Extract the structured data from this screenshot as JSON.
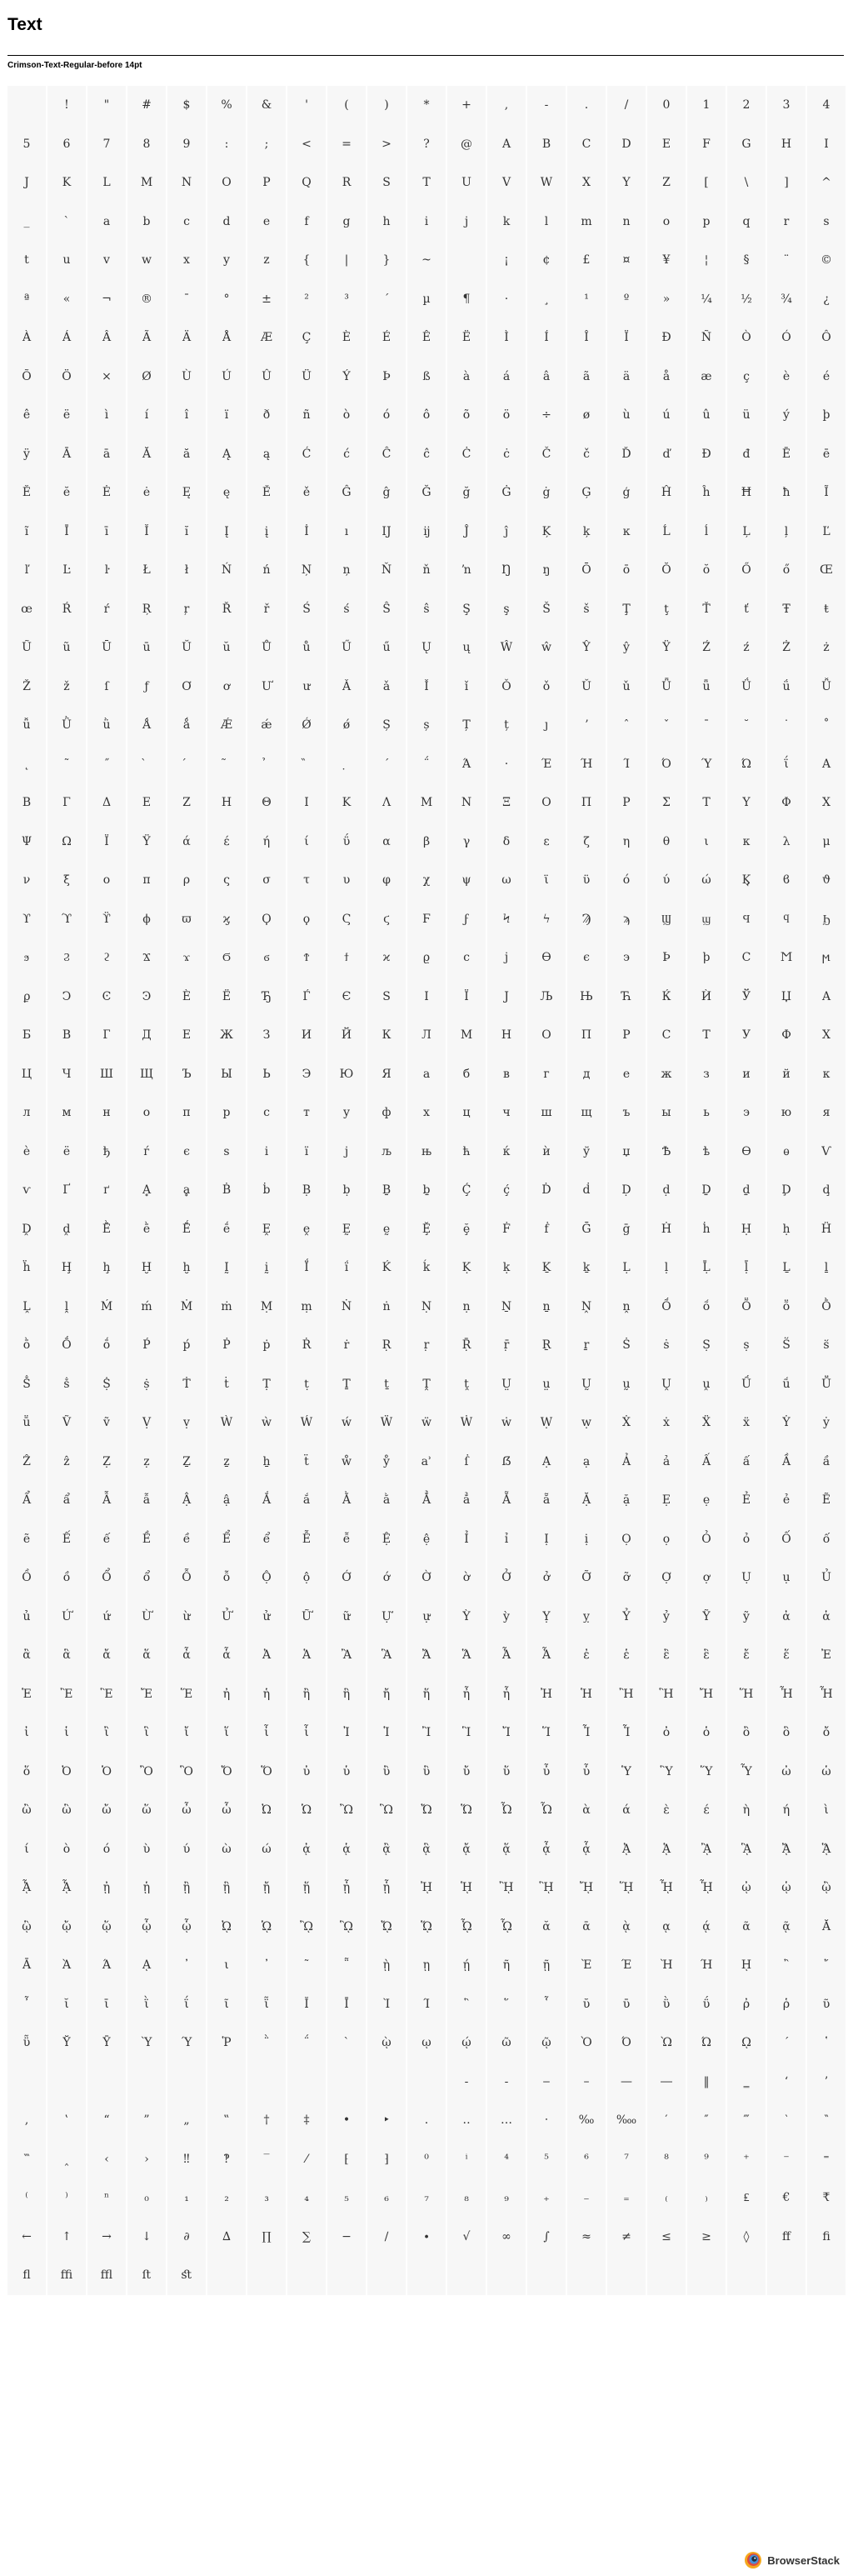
{
  "page": {
    "title": "Text",
    "font_label": "Crimson-Text-Regular-before 14pt"
  },
  "branding": {
    "name": "BrowserStack"
  },
  "colors": {
    "cell_background": "#f7f7f7",
    "glyph": "#333333",
    "text": "#000000"
  },
  "glyph_rows": [
    [
      "",
      "!",
      "\"",
      "#",
      "$",
      "%",
      "&",
      "'",
      "(",
      ")",
      "*",
      "+",
      ",",
      "-",
      ".",
      "/",
      "0",
      "1",
      "2",
      "3",
      "4"
    ],
    [
      "5",
      "6",
      "7",
      "8",
      "9",
      ":",
      ";",
      "<",
      "=",
      ">",
      "?",
      "@",
      "A",
      "B",
      "C",
      "D",
      "E",
      "F",
      "G",
      "H",
      "I"
    ],
    [
      "J",
      "K",
      "L",
      "M",
      "N",
      "O",
      "P",
      "Q",
      "R",
      "S",
      "T",
      "U",
      "V",
      "W",
      "X",
      "Y",
      "Z",
      "[",
      "\\",
      "]",
      "^"
    ],
    [
      "_",
      "`",
      "a",
      "b",
      "c",
      "d",
      "e",
      "f",
      "g",
      "h",
      "i",
      "j",
      "k",
      "l",
      "m",
      "n",
      "o",
      "p",
      "q",
      "r",
      "s"
    ],
    [
      "t",
      "u",
      "v",
      "w",
      "x",
      "y",
      "z",
      "{",
      "|",
      "}",
      "~",
      "",
      "¡",
      "¢",
      "£",
      "¤",
      "¥",
      "¦",
      "§",
      "¨",
      "©"
    ],
    [
      "ª",
      "«",
      "¬",
      "®",
      "¯",
      "°",
      "±",
      "²",
      "³",
      "´",
      "µ",
      "¶",
      "·",
      "¸",
      "¹",
      "º",
      "»",
      "¼",
      "½",
      "¾",
      "¿"
    ],
    [
      "À",
      "Á",
      "Â",
      "Ã",
      "Ä",
      "Å",
      "Æ",
      "Ç",
      "È",
      "É",
      "Ê",
      "Ë",
      "Ì",
      "Í",
      "Î",
      "Ï",
      "Ð",
      "Ñ",
      "Ò",
      "Ó",
      "Ô"
    ],
    [
      "Õ",
      "Ö",
      "×",
      "Ø",
      "Ù",
      "Ú",
      "Û",
      "Ü",
      "Ý",
      "Þ",
      "ß",
      "à",
      "á",
      "â",
      "ã",
      "ä",
      "å",
      "æ",
      "ç",
      "è",
      "é"
    ],
    [
      "ê",
      "ë",
      "ì",
      "í",
      "î",
      "ï",
      "ð",
      "ñ",
      "ò",
      "ó",
      "ô",
      "õ",
      "ö",
      "÷",
      "ø",
      "ù",
      "ú",
      "û",
      "ü",
      "ý",
      "þ"
    ],
    [
      "ÿ",
      "Ā",
      "ā",
      "Ă",
      "ă",
      "Ą",
      "ą",
      "Ć",
      "ć",
      "Ĉ",
      "ĉ",
      "Ċ",
      "ċ",
      "Č",
      "č",
      "Ď",
      "ď",
      "Đ",
      "đ",
      "Ē",
      "ē"
    ],
    [
      "Ĕ",
      "ĕ",
      "Ė",
      "ė",
      "Ę",
      "ę",
      "Ě",
      "ě",
      "Ĝ",
      "ĝ",
      "Ğ",
      "ğ",
      "Ġ",
      "ġ",
      "Ģ",
      "ģ",
      "Ĥ",
      "ĥ",
      "Ħ",
      "ħ",
      "Ĩ"
    ],
    [
      "ĩ",
      "Ī",
      "ī",
      "Ĭ",
      "ĭ",
      "Į",
      "į",
      "İ",
      "ı",
      "Ĳ",
      "ĳ",
      "Ĵ",
      "ĵ",
      "Ķ",
      "ķ",
      "ĸ",
      "Ĺ",
      "ĺ",
      "Ļ",
      "ļ",
      "Ľ"
    ],
    [
      "ľ",
      "Ŀ",
      "ŀ",
      "Ł",
      "ł",
      "Ń",
      "ń",
      "Ņ",
      "ņ",
      "Ň",
      "ň",
      "ŉ",
      "Ŋ",
      "ŋ",
      "Ō",
      "ō",
      "Ŏ",
      "ŏ",
      "Ő",
      "ő",
      "Œ"
    ],
    [
      "œ",
      "Ŕ",
      "ŕ",
      "Ŗ",
      "ŗ",
      "Ř",
      "ř",
      "Ś",
      "ś",
      "Ŝ",
      "ŝ",
      "Ş",
      "ş",
      "Š",
      "š",
      "Ţ",
      "ţ",
      "Ť",
      "ť",
      "Ŧ",
      "ŧ"
    ],
    [
      "Ũ",
      "ũ",
      "Ū",
      "ū",
      "Ŭ",
      "ŭ",
      "Ů",
      "ů",
      "Ű",
      "ű",
      "Ų",
      "ų",
      "Ŵ",
      "ŵ",
      "Ŷ",
      "ŷ",
      "Ÿ",
      "Ź",
      "ź",
      "Ż",
      "ż"
    ],
    [
      "Ž",
      "ž",
      "ſ",
      "ƒ",
      "Ơ",
      "ơ",
      "Ư",
      "ư",
      "Ǎ",
      "ǎ",
      "Ǐ",
      "ǐ",
      "Ǒ",
      "ǒ",
      "Ǔ",
      "ǔ",
      "Ǖ",
      "ǖ",
      "Ǘ",
      "ǘ",
      "Ǚ"
    ],
    [
      "ǚ",
      "Ǜ",
      "ǜ",
      "Ǻ",
      "ǻ",
      "Ǽ",
      "ǽ",
      "Ǿ",
      "ǿ",
      "Ș",
      "ș",
      "Ț",
      "ț",
      "ȷ",
      "ʼ",
      "ˆ",
      "ˇ",
      "ˉ",
      "˘",
      "˙",
      "˚"
    ],
    [
      "˛",
      "˜",
      "˝",
      "̀",
      "́",
      "̃",
      "̉",
      "̏",
      "̣",
      "΄",
      "΅",
      "Ά",
      "·",
      "Έ",
      "Ή",
      "Ί",
      "Ό",
      "Ύ",
      "Ώ",
      "ΐ",
      "Α"
    ],
    [
      "Β",
      "Γ",
      "Δ",
      "Ε",
      "Ζ",
      "Η",
      "Θ",
      "Ι",
      "Κ",
      "Λ",
      "Μ",
      "Ν",
      "Ξ",
      "Ο",
      "Π",
      "Ρ",
      "Σ",
      "Τ",
      "Υ",
      "Φ",
      "Χ"
    ],
    [
      "Ψ",
      "Ω",
      "Ϊ",
      "Ϋ",
      "ά",
      "έ",
      "ή",
      "ί",
      "ΰ",
      "α",
      "β",
      "γ",
      "δ",
      "ε",
      "ζ",
      "η",
      "θ",
      "ι",
      "κ",
      "λ",
      "μ"
    ],
    [
      "ν",
      "ξ",
      "ο",
      "π",
      "ρ",
      "ς",
      "σ",
      "τ",
      "υ",
      "φ",
      "χ",
      "ψ",
      "ω",
      "ϊ",
      "ϋ",
      "ό",
      "ύ",
      "ώ",
      "Ϗ",
      "ϐ",
      "ϑ"
    ],
    [
      "ϒ",
      "ϓ",
      "ϔ",
      "ϕ",
      "ϖ",
      "ϗ",
      "Ϙ",
      "ϙ",
      "Ϛ",
      "ϛ",
      "Ϝ",
      "ϝ",
      "Ϟ",
      "ϟ",
      "Ϡ",
      "ϡ",
      "Ϣ",
      "ϣ",
      "Ϥ",
      "ϥ",
      "Ϧ"
    ],
    [
      "ϧ",
      "Ϩ",
      "ϩ",
      "Ϫ",
      "ϫ",
      "Ϭ",
      "ϭ",
      "Ϯ",
      "ϯ",
      "ϰ",
      "ϱ",
      "ϲ",
      "ϳ",
      "ϴ",
      "ϵ",
      "϶",
      "Ϸ",
      "ϸ",
      "Ϲ",
      "Ϻ",
      "ϻ"
    ],
    [
      "ϼ",
      "Ͻ",
      "Ͼ",
      "Ͽ",
      "Ѐ",
      "Ё",
      "Ђ",
      "Ѓ",
      "Є",
      "Ѕ",
      "І",
      "Ї",
      "Ј",
      "Љ",
      "Њ",
      "Ћ",
      "Ќ",
      "Ѝ",
      "Ў",
      "Џ",
      "А"
    ],
    [
      "Б",
      "В",
      "Г",
      "Д",
      "Е",
      "Ж",
      "З",
      "И",
      "Й",
      "К",
      "Л",
      "М",
      "Н",
      "О",
      "П",
      "Р",
      "С",
      "Т",
      "У",
      "Ф",
      "Х"
    ],
    [
      "Ц",
      "Ч",
      "Ш",
      "Щ",
      "Ъ",
      "Ы",
      "Ь",
      "Э",
      "Ю",
      "Я",
      "а",
      "б",
      "в",
      "г",
      "д",
      "е",
      "ж",
      "з",
      "и",
      "й",
      "к"
    ],
    [
      "л",
      "м",
      "н",
      "о",
      "п",
      "р",
      "с",
      "т",
      "у",
      "ф",
      "х",
      "ц",
      "ч",
      "ш",
      "щ",
      "ъ",
      "ы",
      "ь",
      "э",
      "ю",
      "я"
    ],
    [
      "ѐ",
      "ё",
      "ђ",
      "ѓ",
      "є",
      "ѕ",
      "і",
      "ї",
      "ј",
      "љ",
      "њ",
      "ћ",
      "ќ",
      "ѝ",
      "ў",
      "џ",
      "Ѣ",
      "ѣ",
      "Ѳ",
      "ѳ",
      "Ѵ"
    ],
    [
      "ѵ",
      "Ґ",
      "ґ",
      "Ḁ",
      "ḁ",
      "Ḃ",
      "ḃ",
      "Ḅ",
      "ḅ",
      "Ḇ",
      "ḇ",
      "Ḉ",
      "ḉ",
      "Ḋ",
      "ḋ",
      "Ḍ",
      "ḍ",
      "Ḏ",
      "ḏ",
      "Ḑ",
      "ḑ"
    ],
    [
      "Ḓ",
      "ḓ",
      "Ḕ",
      "ḕ",
      "Ḗ",
      "ḗ",
      "Ḙ",
      "ḙ",
      "Ḛ",
      "ḛ",
      "Ḝ",
      "ḝ",
      "Ḟ",
      "ḟ",
      "Ḡ",
      "ḡ",
      "Ḣ",
      "ḣ",
      "Ḥ",
      "ḥ",
      "Ḧ"
    ],
    [
      "ḧ",
      "Ḩ",
      "ḩ",
      "Ḫ",
      "ḫ",
      "Ḭ",
      "ḭ",
      "Ḯ",
      "ḯ",
      "Ḱ",
      "ḱ",
      "Ḳ",
      "ḳ",
      "Ḵ",
      "ḵ",
      "Ḷ",
      "ḷ",
      "Ḹ",
      "ḹ",
      "Ḻ",
      "ḻ"
    ],
    [
      "Ḽ",
      "ḽ",
      "Ḿ",
      "ḿ",
      "Ṁ",
      "ṁ",
      "Ṃ",
      "ṃ",
      "Ṅ",
      "ṅ",
      "Ṇ",
      "ṇ",
      "Ṉ",
      "ṉ",
      "Ṋ",
      "ṋ",
      "Ṍ",
      "ṍ",
      "Ṏ",
      "ṏ",
      "Ṑ"
    ],
    [
      "ṑ",
      "Ṓ",
      "ṓ",
      "Ṕ",
      "ṕ",
      "Ṗ",
      "ṗ",
      "Ṙ",
      "ṙ",
      "Ṛ",
      "ṛ",
      "Ṝ",
      "ṝ",
      "Ṟ",
      "ṟ",
      "Ṡ",
      "ṡ",
      "Ṣ",
      "ṣ",
      "Ṥ",
      "ṥ"
    ],
    [
      "Ṧ",
      "ṧ",
      "Ṩ",
      "ṩ",
      "Ṫ",
      "ṫ",
      "Ṭ",
      "ṭ",
      "Ṯ",
      "ṯ",
      "Ṱ",
      "ṱ",
      "Ṳ",
      "ṳ",
      "Ṵ",
      "ṵ",
      "Ṷ",
      "ṷ",
      "Ṹ",
      "ṹ",
      "Ṻ"
    ],
    [
      "ṻ",
      "Ṽ",
      "ṽ",
      "Ṿ",
      "ṿ",
      "Ẁ",
      "ẁ",
      "Ẃ",
      "ẃ",
      "Ẅ",
      "ẅ",
      "Ẇ",
      "ẇ",
      "Ẉ",
      "ẉ",
      "Ẋ",
      "ẋ",
      "Ẍ",
      "ẍ",
      "Ẏ",
      "ẏ"
    ],
    [
      "Ẑ",
      "ẑ",
      "Ẓ",
      "ẓ",
      "Ẕ",
      "ẕ",
      "ẖ",
      "ẗ",
      "ẘ",
      "ẙ",
      "ẚ",
      "ẛ",
      "ẞ",
      "Ạ",
      "ạ",
      "Ả",
      "ả",
      "Ấ",
      "ấ",
      "Ầ",
      "ầ"
    ],
    [
      "Ẩ",
      "ẩ",
      "Ẫ",
      "ẫ",
      "Ậ",
      "ậ",
      "Ắ",
      "ắ",
      "Ằ",
      "ằ",
      "Ẳ",
      "ẳ",
      "Ẵ",
      "ẵ",
      "Ặ",
      "ặ",
      "Ẹ",
      "ẹ",
      "Ẻ",
      "ẻ",
      "Ẽ"
    ],
    [
      "ẽ",
      "Ế",
      "ế",
      "Ề",
      "ề",
      "Ể",
      "ể",
      "Ễ",
      "ễ",
      "Ệ",
      "ệ",
      "Ỉ",
      "ỉ",
      "Ị",
      "ị",
      "Ọ",
      "ọ",
      "Ỏ",
      "ỏ",
      "Ố",
      "ố"
    ],
    [
      "Ồ",
      "ồ",
      "Ổ",
      "ổ",
      "Ỗ",
      "ỗ",
      "Ộ",
      "ộ",
      "Ớ",
      "ớ",
      "Ờ",
      "ờ",
      "Ở",
      "ở",
      "Ỡ",
      "ỡ",
      "Ợ",
      "ợ",
      "Ụ",
      "ụ",
      "Ủ"
    ],
    [
      "ủ",
      "Ứ",
      "ứ",
      "Ừ",
      "ừ",
      "Ử",
      "ử",
      "Ữ",
      "ữ",
      "Ự",
      "ự",
      "Ỳ",
      "ỳ",
      "Ỵ",
      "ỵ",
      "Ỷ",
      "ỷ",
      "Ỹ",
      "ỹ",
      "ἀ",
      "ἁ"
    ],
    [
      "ἂ",
      "ἃ",
      "ἄ",
      "ἅ",
      "ἆ",
      "ἇ",
      "Ἀ",
      "Ἁ",
      "Ἂ",
      "Ἃ",
      "Ἄ",
      "Ἅ",
      "Ἆ",
      "Ἇ",
      "ἐ",
      "ἑ",
      "ἒ",
      "ἓ",
      "ἔ",
      "ἕ",
      "Ἐ"
    ],
    [
      "Ἑ",
      "Ἒ",
      "Ἓ",
      "Ἔ",
      "Ἕ",
      "ἠ",
      "ἡ",
      "ἢ",
      "ἣ",
      "ἤ",
      "ἥ",
      "ἦ",
      "ἧ",
      "Ἠ",
      "Ἡ",
      "Ἢ",
      "Ἣ",
      "Ἤ",
      "Ἥ",
      "Ἦ",
      "Ἧ"
    ],
    [
      "ἰ",
      "ἱ",
      "ἲ",
      "ἳ",
      "ἴ",
      "ἵ",
      "ἶ",
      "ἷ",
      "Ἰ",
      "Ἱ",
      "Ἲ",
      "Ἳ",
      "Ἴ",
      "Ἵ",
      "Ἶ",
      "Ἷ",
      "ὀ",
      "ὁ",
      "ὂ",
      "ὃ",
      "ὄ"
    ],
    [
      "ὅ",
      "Ὀ",
      "Ὁ",
      "Ὂ",
      "Ὃ",
      "Ὄ",
      "Ὅ",
      "ὐ",
      "ὑ",
      "ὒ",
      "ὓ",
      "ὔ",
      "ὕ",
      "ὖ",
      "ὗ",
      "Ὑ",
      "Ὓ",
      "Ὕ",
      "Ὗ",
      "ὠ",
      "ὡ"
    ],
    [
      "ὢ",
      "ὣ",
      "ὤ",
      "ὥ",
      "ὦ",
      "ὧ",
      "Ὠ",
      "Ὡ",
      "Ὢ",
      "Ὣ",
      "Ὤ",
      "Ὥ",
      "Ὦ",
      "Ὧ",
      "ὰ",
      "ά",
      "ὲ",
      "έ",
      "ὴ",
      "ή",
      "ὶ"
    ],
    [
      "ί",
      "ὸ",
      "ό",
      "ὺ",
      "ύ",
      "ὼ",
      "ώ",
      "ᾀ",
      "ᾁ",
      "ᾂ",
      "ᾃ",
      "ᾄ",
      "ᾅ",
      "ᾆ",
      "ᾇ",
      "ᾈ",
      "ᾉ",
      "ᾊ",
      "ᾋ",
      "ᾌ",
      "ᾍ"
    ],
    [
      "ᾎ",
      "ᾏ",
      "ᾐ",
      "ᾑ",
      "ᾒ",
      "ᾓ",
      "ᾔ",
      "ᾕ",
      "ᾖ",
      "ᾗ",
      "ᾘ",
      "ᾙ",
      "ᾚ",
      "ᾛ",
      "ᾜ",
      "ᾝ",
      "ᾞ",
      "ᾟ",
      "ᾠ",
      "ᾡ",
      "ᾢ"
    ],
    [
      "ᾣ",
      "ᾤ",
      "ᾥ",
      "ᾦ",
      "ᾧ",
      "ᾨ",
      "ᾩ",
      "ᾪ",
      "ᾫ",
      "ᾬ",
      "ᾭ",
      "ᾮ",
      "ᾯ",
      "ᾰ",
      "ᾱ",
      "ᾲ",
      "ᾳ",
      "ᾴ",
      "ᾶ",
      "ᾷ",
      "Ᾰ"
    ],
    [
      "Ᾱ",
      "Ὰ",
      "Ά",
      "ᾼ",
      "᾽",
      "ι",
      "᾿",
      "῀",
      "῁",
      "ῂ",
      "ῃ",
      "ῄ",
      "ῆ",
      "ῇ",
      "Ὲ",
      "Έ",
      "Ὴ",
      "Ή",
      "ῌ",
      "῍",
      "῎"
    ],
    [
      "῏",
      "ῐ",
      "ῑ",
      "ῒ",
      "ΐ",
      "ῖ",
      "ῗ",
      "Ῐ",
      "Ῑ",
      "Ὶ",
      "Ί",
      "῝",
      "῞",
      "῟",
      "ῠ",
      "ῡ",
      "ῢ",
      "ΰ",
      "ῤ",
      "ῥ",
      "ῦ"
    ],
    [
      "ῧ",
      "Ῠ",
      "Ῡ",
      "Ὺ",
      "Ύ",
      "Ῥ",
      "῭",
      "΅",
      "`",
      "ῲ",
      "ῳ",
      "ῴ",
      "ῶ",
      "ῷ",
      "Ὸ",
      "Ό",
      "Ὼ",
      "Ώ",
      "ῼ",
      "´",
      "῾"
    ],
    [
      "",
      "",
      "",
      "",
      "",
      "",
      "",
      "",
      "",
      "",
      "",
      "‐",
      "‑",
      "‒",
      "–",
      "—",
      "―",
      "‖",
      "‗",
      "‘",
      "’"
    ],
    [
      "‚",
      "‛",
      "“",
      "”",
      "„",
      "‟",
      "†",
      "‡",
      "•",
      "‣",
      "․",
      "‥",
      "…",
      "‧",
      "‰",
      "‱",
      "′",
      "″",
      "‴",
      "‵",
      "‶"
    ],
    [
      "‷",
      "‸",
      "‹",
      "›",
      "‼",
      "‽",
      "‾",
      "⁄",
      "⁅",
      "⁆",
      "⁰",
      "ⁱ",
      "⁴",
      "⁵",
      "⁶",
      "⁷",
      "⁸",
      "⁹",
      "⁺",
      "⁻",
      "⁼"
    ],
    [
      "⁽",
      "⁾",
      "ⁿ",
      "₀",
      "₁",
      "₂",
      "₃",
      "₄",
      "₅",
      "₆",
      "₇",
      "₈",
      "₉",
      "₊",
      "₋",
      "₌",
      "₍",
      "₎",
      "₤",
      "€",
      "₹"
    ],
    [
      "←",
      "↑",
      "→",
      "↓",
      "∂",
      "∆",
      "∏",
      "∑",
      "−",
      "∕",
      "∙",
      "√",
      "∞",
      "∫",
      "≈",
      "≠",
      "≤",
      "≥",
      "◊",
      "ﬀ",
      "ﬁ"
    ],
    [
      "ﬂ",
      "ﬃ",
      "ﬄ",
      "ﬅ",
      "ﬆ",
      "",
      "",
      "",
      "",
      "",
      "",
      "",
      "",
      "",
      "",
      "",
      "",
      "",
      "",
      "",
      ""
    ]
  ]
}
